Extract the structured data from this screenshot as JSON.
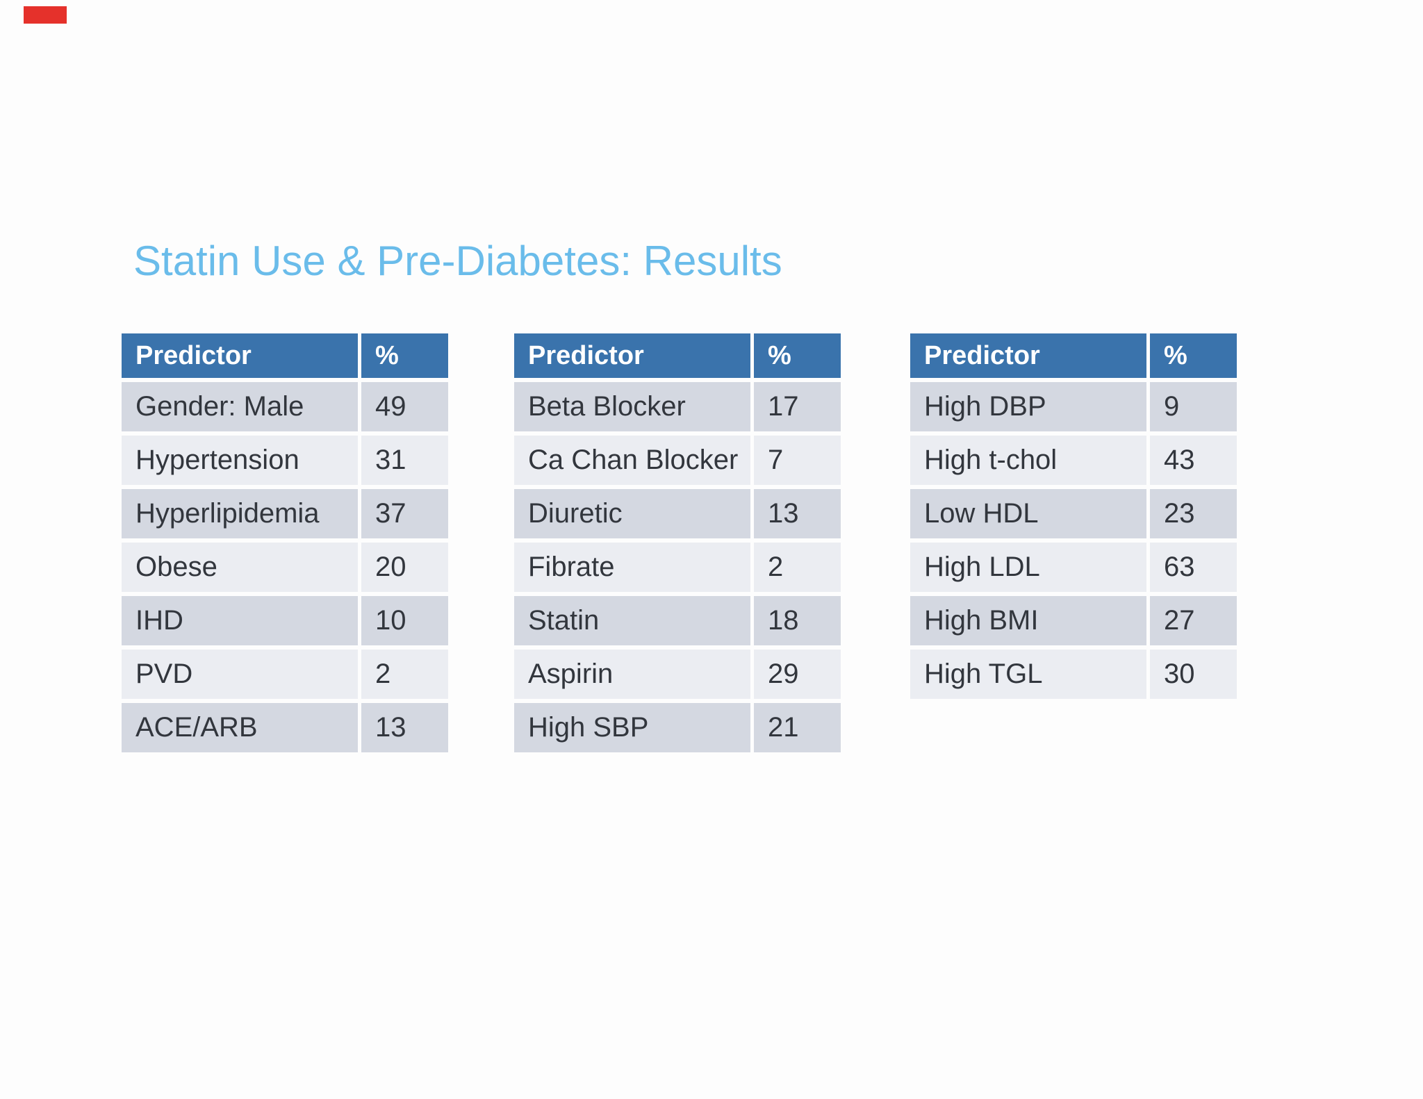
{
  "slide": {
    "title": "Statin Use & Pre-Diabetes: Results",
    "title_color": "#6abcea",
    "background_color": "#fdfdfd"
  },
  "recording_marker": {
    "color": "#e5312b"
  },
  "table_style": {
    "header_bg": "#3a73ac",
    "header_text_color": "#ffffff",
    "row_odd_bg": "#d4d8e1",
    "row_even_bg": "#ebedf2",
    "row_text_color": "#32363d"
  },
  "tables": [
    {
      "headers": [
        "Predictor",
        "%"
      ],
      "rows": [
        [
          "Gender: Male",
          "49"
        ],
        [
          "Hypertension",
          "31"
        ],
        [
          "Hyperlipidemia",
          "37"
        ],
        [
          "Obese",
          "20"
        ],
        [
          "IHD",
          "10"
        ],
        [
          "PVD",
          "2"
        ],
        [
          "ACE/ARB",
          "13"
        ]
      ]
    },
    {
      "headers": [
        "Predictor",
        "%"
      ],
      "rows": [
        [
          "Beta Blocker",
          "17"
        ],
        [
          "Ca Chan Blocker",
          "7"
        ],
        [
          "Diuretic",
          "13"
        ],
        [
          "Fibrate",
          "2"
        ],
        [
          "Statin",
          "18"
        ],
        [
          "Aspirin",
          "29"
        ],
        [
          "High SBP",
          "21"
        ]
      ]
    },
    {
      "headers": [
        "Predictor",
        "%"
      ],
      "rows": [
        [
          "High DBP",
          "9"
        ],
        [
          "High t-chol",
          "43"
        ],
        [
          "Low HDL",
          "23"
        ],
        [
          "High LDL",
          "63"
        ],
        [
          "High BMI",
          "27"
        ],
        [
          "High TGL",
          "30"
        ]
      ]
    }
  ]
}
